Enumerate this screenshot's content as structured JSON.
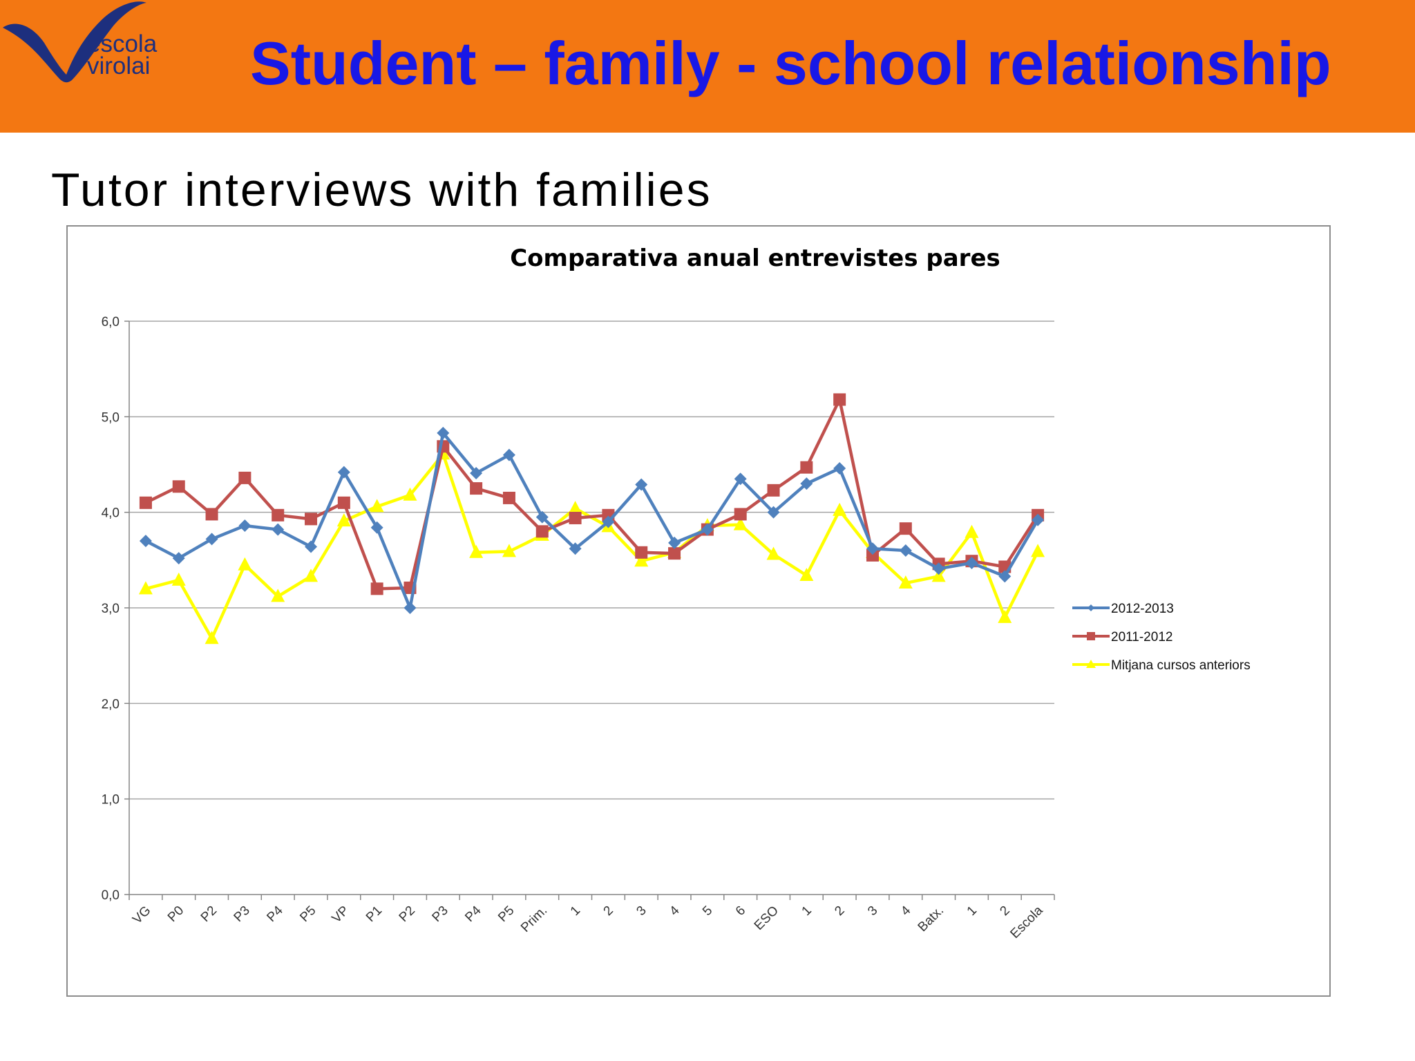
{
  "header": {
    "logo_text_line1": "escola",
    "logo_text_line2": "virolai",
    "title": "Student – family - school relationship"
  },
  "subtitle": "Tutor interviews with families",
  "colors": {
    "header_bg": "#f37712",
    "title": "#1818e6",
    "logo": "#1d2f7e",
    "series_2012_2013": "#4f81bd",
    "series_2011_2012": "#c0504d",
    "series_mitjana": "#ffff00"
  },
  "chart_data": {
    "type": "line",
    "title": "Comparativa anual entrevistes pares",
    "xlabel": "",
    "ylabel": "",
    "ylim": [
      0,
      6
    ],
    "yticks": [
      "0,0",
      "1,0",
      "2,0",
      "3,0",
      "4,0",
      "5,0",
      "6,0"
    ],
    "grid": true,
    "legend_position": "right",
    "categories": [
      "VG",
      "P0",
      "P2",
      "P3",
      "P4",
      "P5",
      "VP",
      "P1",
      "P2",
      "P3",
      "P4",
      "P5",
      "Prim.",
      "1",
      "2",
      "3",
      "4",
      "5",
      "6",
      "ESO",
      "1",
      "2",
      "3",
      "4",
      "Batx.",
      "1",
      "2",
      "Escola"
    ],
    "series": [
      {
        "name": "2012-2013",
        "color": "#4f81bd",
        "marker": "diamond",
        "values": [
          3.7,
          3.52,
          3.72,
          3.86,
          3.82,
          3.64,
          4.42,
          3.84,
          3.0,
          4.83,
          4.41,
          4.6,
          3.95,
          3.62,
          3.9,
          4.29,
          3.68,
          3.82,
          4.35,
          4.0,
          4.3,
          4.46,
          3.62,
          3.6,
          3.41,
          3.47,
          3.33,
          3.92
        ]
      },
      {
        "name": "2011-2012",
        "color": "#c0504d",
        "marker": "square",
        "values": [
          4.1,
          4.27,
          3.98,
          4.36,
          3.97,
          3.93,
          4.1,
          3.2,
          3.21,
          4.69,
          4.25,
          4.15,
          3.8,
          3.94,
          3.97,
          3.58,
          3.57,
          3.82,
          3.98,
          4.23,
          4.47,
          5.18,
          3.55,
          3.83,
          3.46,
          3.49,
          3.43,
          3.97
        ]
      },
      {
        "name": "Mitjana cursos anteriors",
        "color": "#ffff00",
        "marker": "triangle",
        "values": [
          3.2,
          3.29,
          2.68,
          3.45,
          3.12,
          3.33,
          3.91,
          4.06,
          4.18,
          4.61,
          3.58,
          3.59,
          3.76,
          4.04,
          3.85,
          3.49,
          3.58,
          3.86,
          3.87,
          3.56,
          3.34,
          4.02,
          3.58,
          3.26,
          3.33,
          3.79,
          2.9,
          3.59
        ]
      }
    ]
  }
}
